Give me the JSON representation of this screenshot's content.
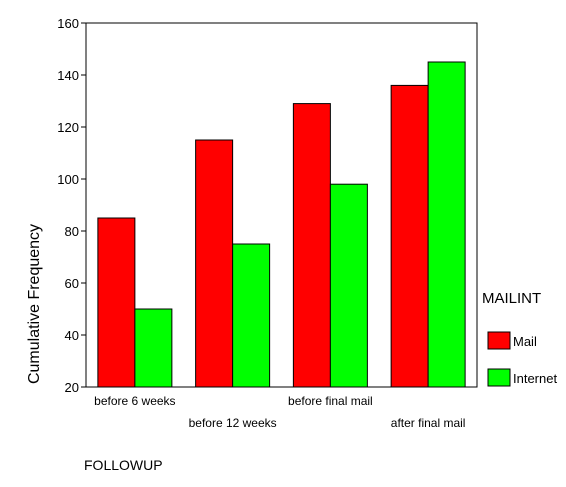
{
  "chart_data": {
    "type": "bar",
    "categories": [
      "before 6 weeks",
      "before 12 weeks",
      "before final mail",
      "after final mail"
    ],
    "series": [
      {
        "name": "Mail",
        "values": [
          85,
          115,
          129,
          136
        ],
        "color": "#ff0000"
      },
      {
        "name": "Internet",
        "values": [
          50,
          75,
          98,
          145
        ],
        "color": "#00ff00"
      }
    ],
    "xlabel": "FOLLOWUP",
    "ylabel": "Cumulative Frequency",
    "ylim": [
      20,
      160
    ],
    "yticks": [
      20,
      40,
      60,
      80,
      100,
      120,
      140,
      160
    ],
    "legend_title": "MAILINT",
    "legend_position": "right",
    "grid": false
  }
}
